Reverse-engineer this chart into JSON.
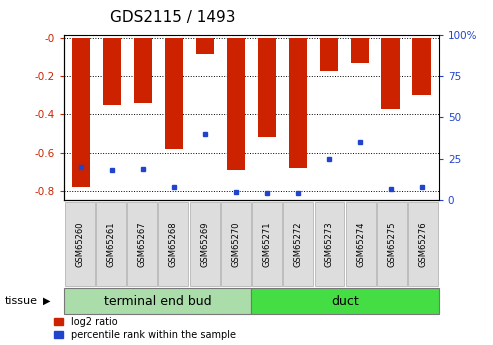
{
  "title": "GDS2115 / 1493",
  "samples": [
    "GSM65260",
    "GSM65261",
    "GSM65267",
    "GSM65268",
    "GSM65269",
    "GSM65270",
    "GSM65271",
    "GSM65272",
    "GSM65273",
    "GSM65274",
    "GSM65275",
    "GSM65276"
  ],
  "log2_ratios": [
    -0.78,
    -0.35,
    -0.34,
    -0.58,
    -0.08,
    -0.69,
    -0.52,
    -0.68,
    -0.17,
    -0.13,
    -0.37,
    -0.3
  ],
  "percentile_ranks": [
    20,
    18,
    19,
    8,
    40,
    5,
    4,
    4,
    25,
    35,
    7,
    8
  ],
  "tissue_groups": [
    {
      "label": "terminal end bud",
      "start": 0,
      "end": 5,
      "color": "#aaddaa"
    },
    {
      "label": "duct",
      "start": 6,
      "end": 11,
      "color": "#44dd44"
    }
  ],
  "bar_color": "#CC2200",
  "dot_color": "#2244CC",
  "ylim_left": [
    -0.85,
    0.02
  ],
  "ylim_right": [
    0,
    100
  ],
  "yticks_left": [
    -0.8,
    -0.6,
    -0.4,
    -0.2,
    0.0
  ],
  "yticks_right": [
    0,
    25,
    50,
    75,
    100
  ],
  "ytick_labels_left": [
    "-0.8",
    "-0.6",
    "-0.4",
    "-0.2",
    "-0"
  ],
  "ytick_labels_right": [
    "0",
    "25",
    "50",
    "75",
    "100%"
  ],
  "grid_color": "#000000",
  "bg_plot": "#FFFFFF",
  "bg_figure": "#FFFFFF",
  "left_tick_color": "#CC2200",
  "right_tick_color": "#2244CC",
  "bar_width": 0.6,
  "tissue_label_fontsize": 9,
  "sample_fontsize": 6,
  "tick_label_fontsize": 7.5,
  "title_fontsize": 11
}
